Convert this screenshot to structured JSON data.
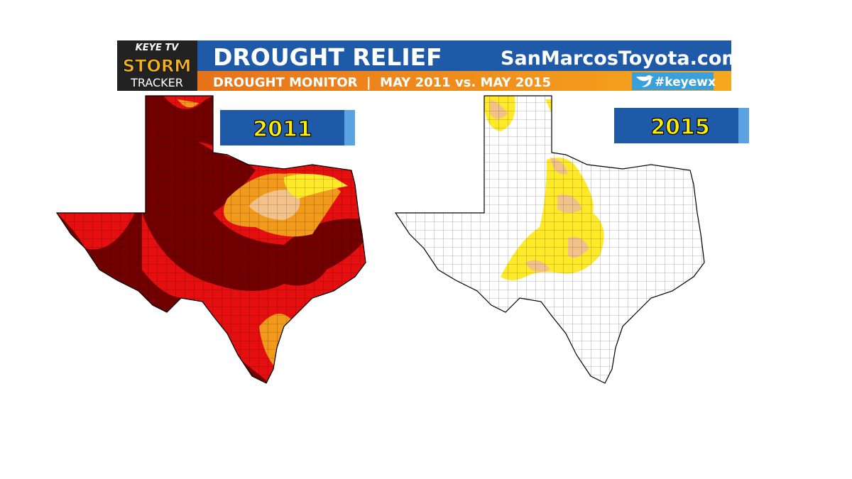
{
  "header": {
    "logo_top": "KEYE TV",
    "logo_mid": "STORM",
    "logo_bottom": "TRACKER",
    "title": "DROUGHT RELIEF",
    "sponsor": "SanMarcosToyota.com",
    "subtitle": "DROUGHT MONITOR  |  MAY 2011 vs. MAY 2015",
    "hashtag": "#keyewx"
  },
  "maps": [
    {
      "label": "2011"
    },
    {
      "label": "2015"
    }
  ]
}
